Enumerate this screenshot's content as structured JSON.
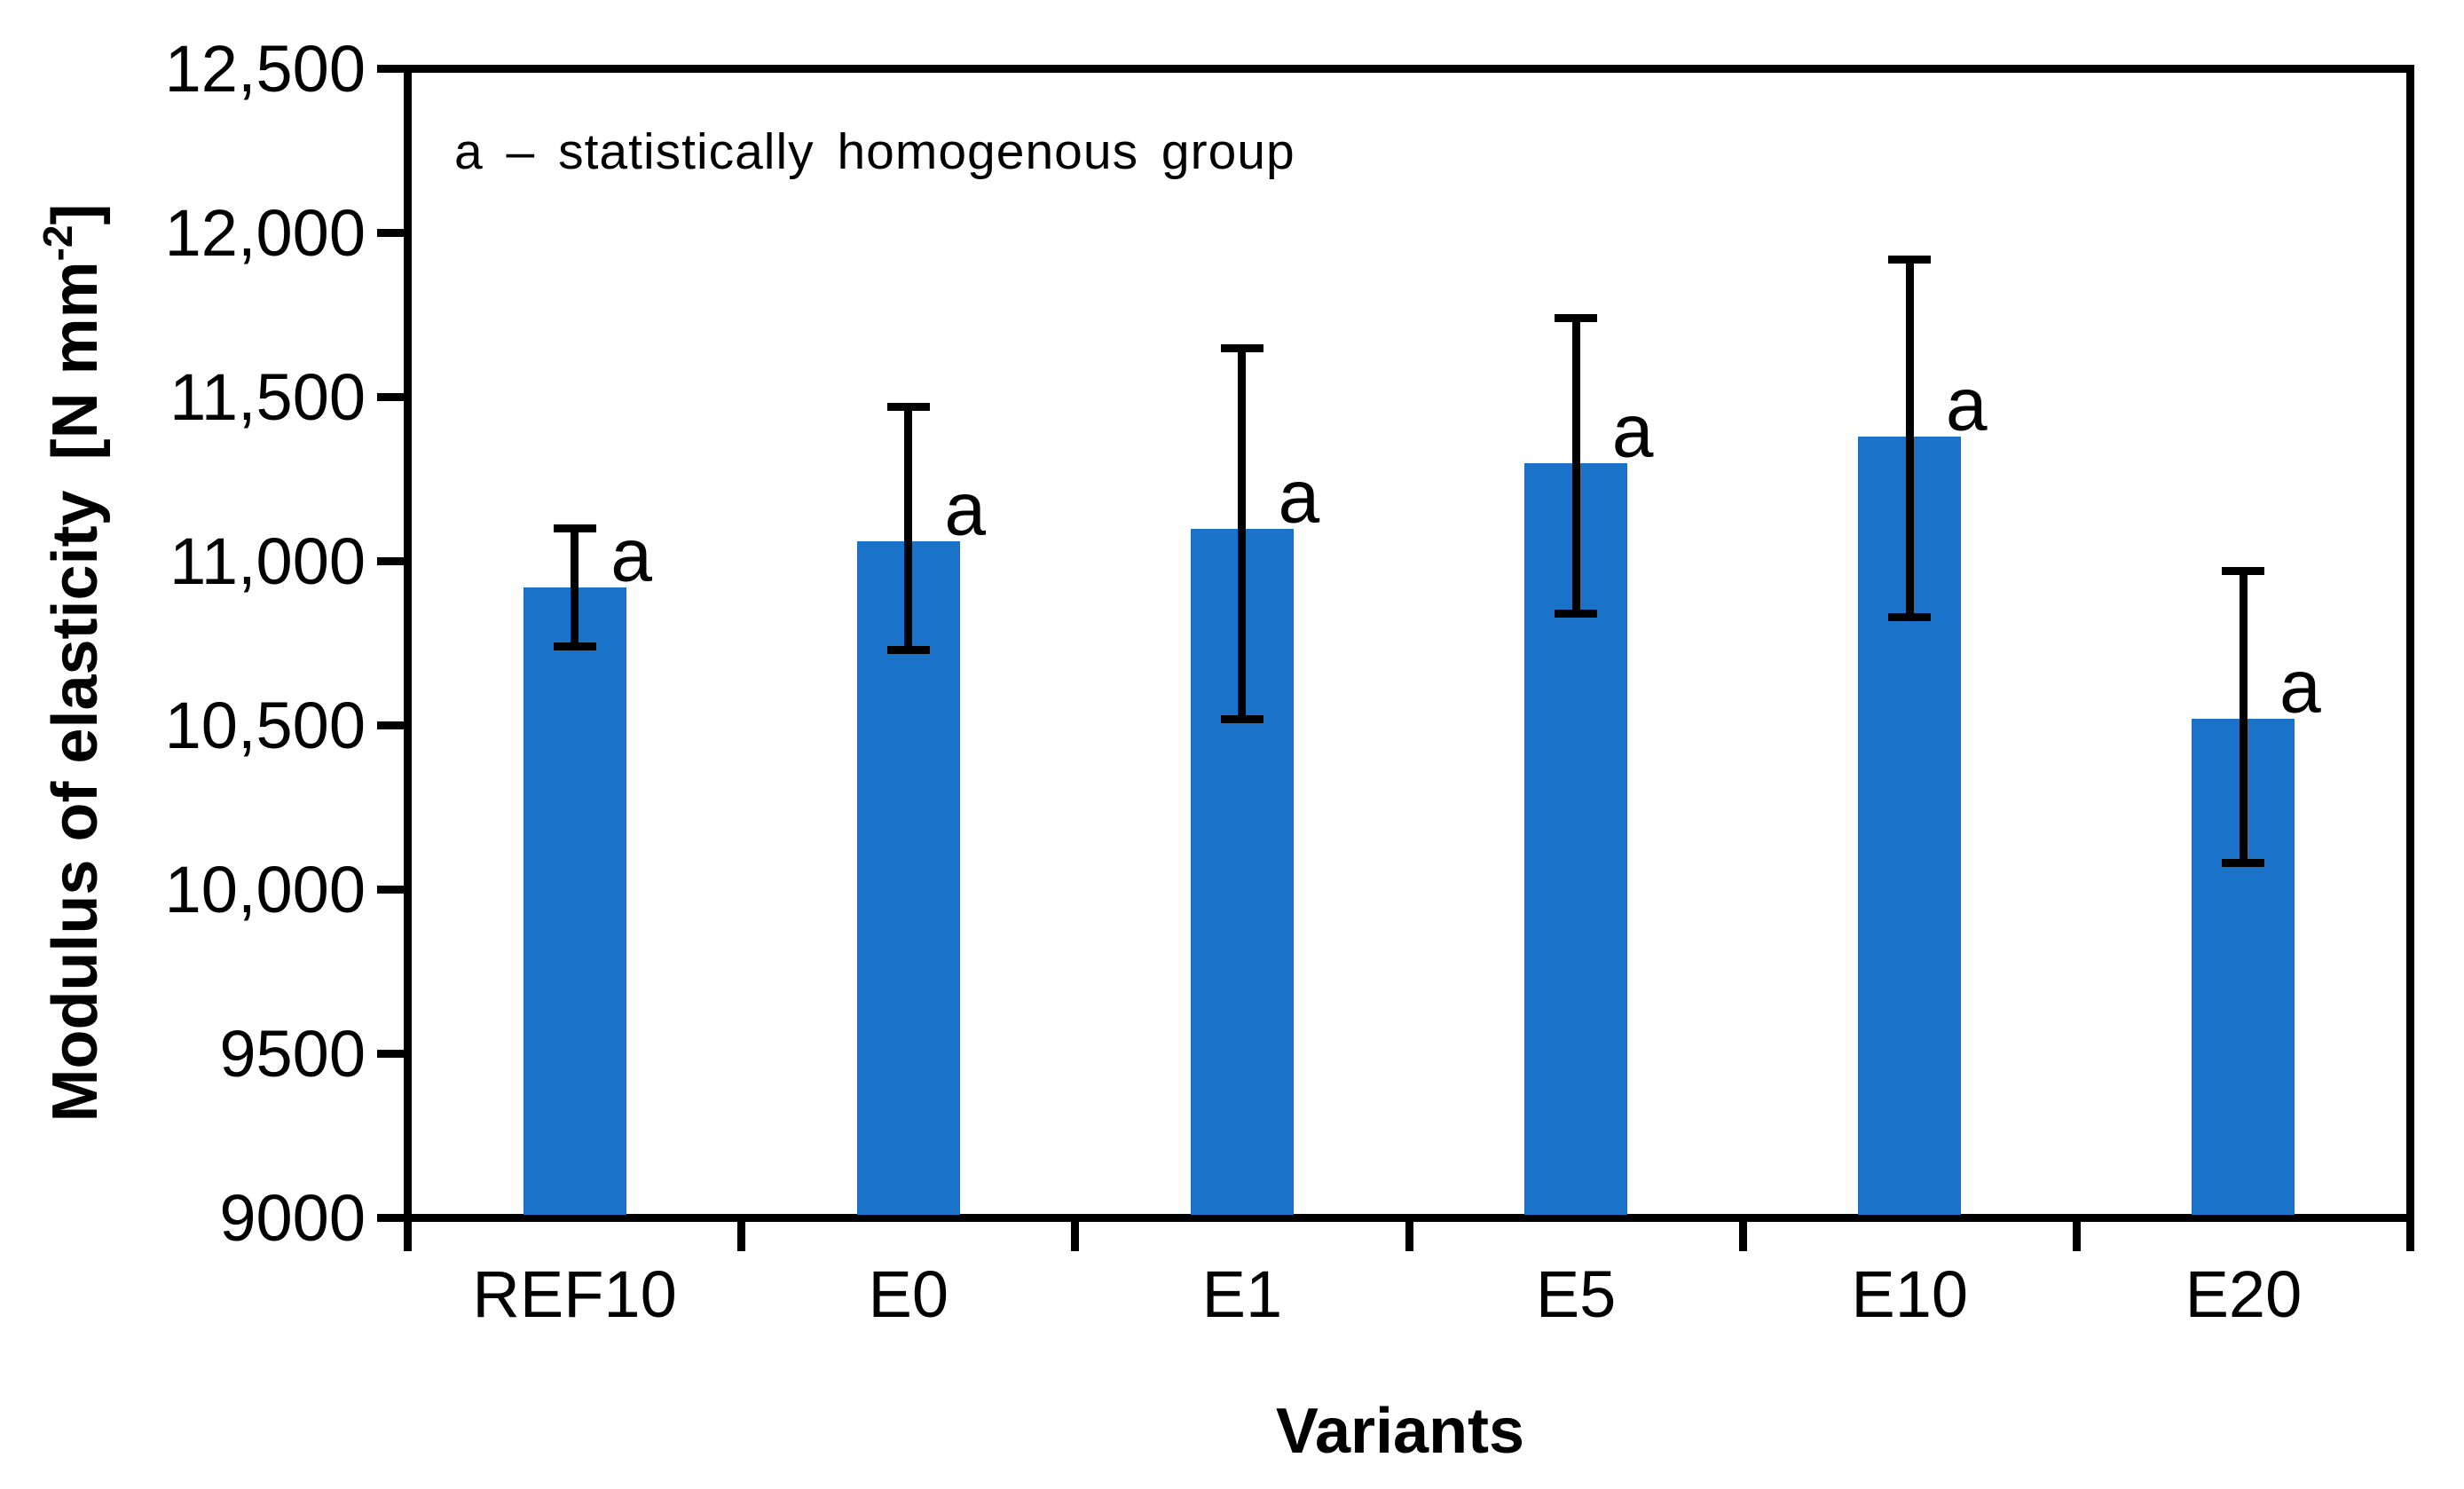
{
  "chart_data": {
    "type": "bar",
    "title": "",
    "xlabel": "Variants",
    "ylabel": "Modulus of elasticity [N mm⁻²]",
    "ylabel_parts": {
      "text": "Modulus of elasticity",
      "unit_open": "[N mm",
      "unit_sup": "-2",
      "unit_close": "]"
    },
    "annotation": "a – statistically homogenous group",
    "categories": [
      "REF10",
      "E0",
      "E1",
      "E5",
      "E10",
      "E20"
    ],
    "values": [
      10920,
      11060,
      11100,
      11300,
      11380,
      10520
    ],
    "error_low": [
      10740,
      10730,
      10520,
      10840,
      10830,
      10080
    ],
    "error_high": [
      11100,
      11470,
      11650,
      11740,
      11920,
      10970
    ],
    "point_labels": [
      "a",
      "a",
      "a",
      "a",
      "a",
      "a"
    ],
    "ylim": [
      9000,
      12500
    ],
    "ytick_step": 500,
    "ytick_labels": [
      "9000",
      "9500",
      "10,000",
      "10,500",
      "11,000",
      "11,500",
      "12,000",
      "12,500"
    ],
    "grid": false,
    "legend": false,
    "bar_color": "#1a73c8",
    "axis_color": "#000000",
    "text_color": "#000000",
    "background_color": "#ffffff"
  }
}
